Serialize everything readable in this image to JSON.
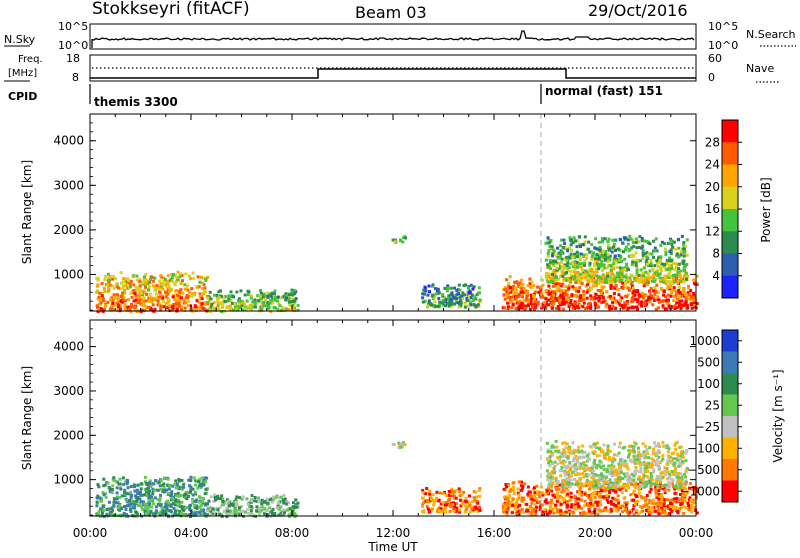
{
  "header": {
    "radar": "Stokkseyri (fitACF)",
    "beam": "Beam 03",
    "date": "29/Oct/2016"
  },
  "top_panels": {
    "nsky_label": "N.Sky",
    "nsearch_label": "N.Search",
    "freq_label_1": "Freq.",
    "freq_label_2": "[MHz]",
    "nave_label": "Nave",
    "cpid_label": "CPID",
    "noise_left_ticks": [
      "10^5",
      "10^0"
    ],
    "noise_right_ticks": [
      "10^5",
      "10^0"
    ],
    "freq_left_ticks": [
      "18",
      "8"
    ],
    "nave_right_ticks": [
      "60",
      "0"
    ],
    "cpid_segments": [
      {
        "name": "themis 3300",
        "start_hour": 0
      },
      {
        "name": "normal (fast) 151",
        "start_hour": 18
      }
    ]
  },
  "chart_data": [
    {
      "type": "heatmap",
      "title": "Power",
      "ylabel": "Slant Range [km]",
      "xlabel": "",
      "xlim_hours": [
        0,
        24
      ],
      "ylim": [
        180,
        4600
      ],
      "y_ticks": [
        "1000",
        "2000",
        "3000",
        "4000"
      ],
      "colorbar_label": "Power [dB]",
      "colorbar_ticks": [
        "4",
        "8",
        "12",
        "16",
        "20",
        "24",
        "28"
      ],
      "colors": [
        "#1e22ff",
        "#2c5fb0",
        "#2e8b4f",
        "#43c43a",
        "#d8d21e",
        "#ffa500",
        "#ff5a00",
        "#ff0000"
      ],
      "regions": [
        {
          "t0": 0.2,
          "t1": 4.6,
          "r0": 200,
          "r1": 1100,
          "level": 5
        },
        {
          "t0": 4.6,
          "t1": 8.2,
          "r0": 200,
          "r1": 700,
          "level": 3
        },
        {
          "t0": 11.9,
          "t1": 12.5,
          "r0": 1750,
          "r1": 1900,
          "level": 2
        },
        {
          "t0": 13.1,
          "t1": 15.4,
          "r0": 300,
          "r1": 850,
          "level": 2
        },
        {
          "t0": 16.3,
          "t1": 24.0,
          "r0": 250,
          "r1": 1000,
          "level": 6
        },
        {
          "t0": 18.0,
          "t1": 23.6,
          "r0": 850,
          "r1": 1900,
          "level": 3
        }
      ]
    },
    {
      "type": "heatmap",
      "title": "Velocity",
      "ylabel": "Slant Range [km]",
      "xlabel": "Time UT",
      "xlim_hours": [
        0,
        24
      ],
      "ylim": [
        180,
        4600
      ],
      "y_ticks": [
        "1000",
        "2000",
        "3000",
        "4000"
      ],
      "x_ticks": [
        "00:00",
        "04:00",
        "08:00",
        "12:00",
        "16:00",
        "20:00",
        "00:00"
      ],
      "colorbar_label": "Velocity [m s⁻¹]",
      "colorbar_ticks": [
        "1000",
        "500",
        "100",
        "25",
        "−25",
        "−100",
        "−500",
        "−1000"
      ],
      "colors": [
        "#1e3cd2",
        "#3c7ab4",
        "#2e8b4f",
        "#64c850",
        "#c0c0c0",
        "#ffb000",
        "#ff7800",
        "#ff0000"
      ],
      "regions": [
        {
          "t0": 0.2,
          "t1": 4.6,
          "r0": 200,
          "r1": 1100,
          "level": 2
        },
        {
          "t0": 4.6,
          "t1": 8.2,
          "r0": 200,
          "r1": 700,
          "level": 3
        },
        {
          "t0": 11.9,
          "t1": 12.5,
          "r0": 1750,
          "r1": 1900,
          "level": 4
        },
        {
          "t0": 13.1,
          "t1": 15.4,
          "r0": 300,
          "r1": 850,
          "level": 6
        },
        {
          "t0": 16.3,
          "t1": 24.0,
          "r0": 250,
          "r1": 1000,
          "level": 6
        },
        {
          "t0": 18.0,
          "t1": 23.6,
          "r0": 850,
          "r1": 1900,
          "level": 4
        }
      ]
    }
  ]
}
